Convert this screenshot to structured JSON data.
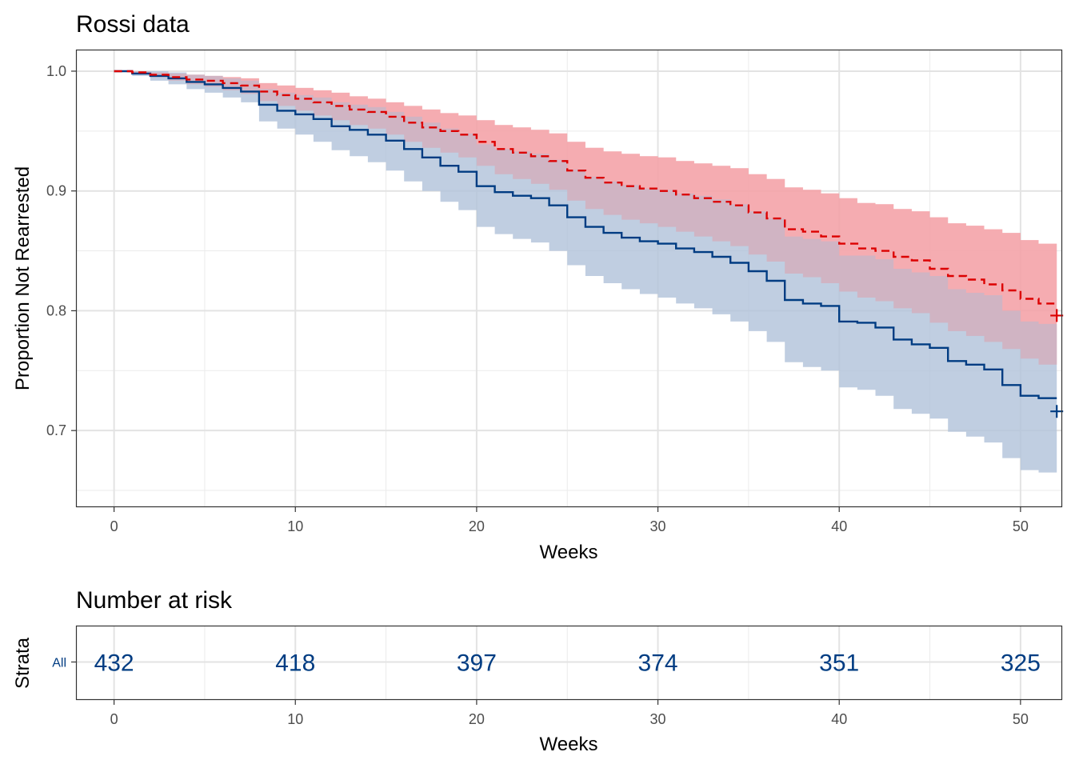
{
  "chart_data": [
    {
      "type": "line",
      "title": "Rossi data",
      "xlabel": "Weeks",
      "ylabel": "Proportion Not Rearrested",
      "xlim": [
        -2.1,
        52.3
      ],
      "ylim": [
        0.636,
        1.018
      ],
      "xticks": [
        0,
        10,
        20,
        30,
        40,
        50
      ],
      "yticks": [
        0.7,
        0.8,
        0.9,
        1.0
      ],
      "ytick_labels": [
        "0.7",
        "0.8",
        "0.9",
        "1.0"
      ],
      "grid": true,
      "step": true,
      "series": [
        {
          "color": "#DC0000",
          "ci_color": "#F4A3A8",
          "dash": true,
          "x": [
            0,
            1,
            2,
            3,
            4,
            5,
            6,
            7,
            8,
            9,
            10,
            11,
            12,
            13,
            14,
            15,
            16,
            17,
            18,
            19,
            20,
            21,
            22,
            23,
            24,
            25,
            26,
            27,
            28,
            29,
            30,
            31,
            32,
            33,
            34,
            35,
            36,
            37,
            38,
            39,
            40,
            41,
            42,
            43,
            44,
            45,
            46,
            47,
            48,
            49,
            50,
            51,
            52
          ],
          "y": [
            1.0,
            0.999,
            0.997,
            0.995,
            0.993,
            0.992,
            0.99,
            0.988,
            0.983,
            0.98,
            0.977,
            0.974,
            0.971,
            0.968,
            0.966,
            0.962,
            0.957,
            0.953,
            0.95,
            0.947,
            0.941,
            0.935,
            0.932,
            0.929,
            0.925,
            0.917,
            0.911,
            0.907,
            0.904,
            0.902,
            0.9,
            0.897,
            0.894,
            0.891,
            0.888,
            0.882,
            0.877,
            0.868,
            0.866,
            0.862,
            0.856,
            0.852,
            0.85,
            0.845,
            0.842,
            0.835,
            0.829,
            0.826,
            0.822,
            0.817,
            0.81,
            0.806,
            0.806
          ],
          "lower": [
            1.0,
            0.998,
            0.995,
            0.992,
            0.989,
            0.987,
            0.984,
            0.981,
            0.975,
            0.971,
            0.967,
            0.963,
            0.959,
            0.955,
            0.952,
            0.947,
            0.941,
            0.936,
            0.932,
            0.928,
            0.921,
            0.914,
            0.91,
            0.906,
            0.901,
            0.892,
            0.885,
            0.88,
            0.876,
            0.873,
            0.87,
            0.866,
            0.862,
            0.858,
            0.854,
            0.847,
            0.841,
            0.831,
            0.828,
            0.823,
            0.816,
            0.811,
            0.808,
            0.802,
            0.798,
            0.79,
            0.783,
            0.779,
            0.774,
            0.768,
            0.76,
            0.755,
            0.755
          ],
          "upper": [
            1.0,
            1.0,
            0.999,
            0.998,
            0.997,
            0.996,
            0.995,
            0.994,
            0.99,
            0.988,
            0.986,
            0.984,
            0.982,
            0.979,
            0.977,
            0.974,
            0.971,
            0.968,
            0.965,
            0.963,
            0.959,
            0.955,
            0.953,
            0.951,
            0.948,
            0.941,
            0.936,
            0.933,
            0.931,
            0.929,
            0.928,
            0.925,
            0.923,
            0.921,
            0.919,
            0.914,
            0.91,
            0.903,
            0.901,
            0.898,
            0.894,
            0.89,
            0.889,
            0.885,
            0.883,
            0.878,
            0.873,
            0.871,
            0.868,
            0.865,
            0.859,
            0.856,
            0.856
          ],
          "censor": {
            "x": 52,
            "y": 0.796
          }
        },
        {
          "color": "#003C82",
          "ci_color": "#B0C2D9",
          "dash": false,
          "x": [
            0,
            1,
            2,
            3,
            4,
            5,
            6,
            7,
            8,
            9,
            10,
            11,
            12,
            13,
            14,
            15,
            16,
            17,
            18,
            19,
            20,
            21,
            22,
            23,
            24,
            25,
            26,
            27,
            28,
            29,
            30,
            31,
            32,
            33,
            34,
            35,
            36,
            37,
            38,
            39,
            40,
            41,
            42,
            43,
            44,
            45,
            46,
            47,
            48,
            49,
            50,
            51,
            52
          ],
          "y": [
            1.0,
            0.998,
            0.996,
            0.994,
            0.991,
            0.989,
            0.986,
            0.983,
            0.972,
            0.967,
            0.964,
            0.96,
            0.954,
            0.951,
            0.947,
            0.942,
            0.935,
            0.928,
            0.921,
            0.916,
            0.904,
            0.899,
            0.896,
            0.894,
            0.888,
            0.878,
            0.87,
            0.865,
            0.861,
            0.858,
            0.856,
            0.852,
            0.849,
            0.845,
            0.84,
            0.833,
            0.825,
            0.809,
            0.806,
            0.804,
            0.791,
            0.79,
            0.786,
            0.776,
            0.772,
            0.769,
            0.758,
            0.755,
            0.751,
            0.738,
            0.729,
            0.727,
            0.727
          ],
          "lower": [
            1.0,
            0.996,
            0.992,
            0.989,
            0.985,
            0.982,
            0.978,
            0.974,
            0.958,
            0.952,
            0.947,
            0.941,
            0.934,
            0.929,
            0.924,
            0.917,
            0.908,
            0.9,
            0.891,
            0.884,
            0.87,
            0.864,
            0.86,
            0.857,
            0.85,
            0.838,
            0.829,
            0.823,
            0.818,
            0.814,
            0.811,
            0.806,
            0.802,
            0.797,
            0.791,
            0.783,
            0.774,
            0.757,
            0.753,
            0.75,
            0.736,
            0.734,
            0.729,
            0.718,
            0.714,
            0.71,
            0.699,
            0.695,
            0.69,
            0.677,
            0.667,
            0.665,
            0.665
          ],
          "upper": [
            1.0,
            1.0,
            1.0,
            0.999,
            0.997,
            0.996,
            0.994,
            0.992,
            0.985,
            0.982,
            0.98,
            0.978,
            0.974,
            0.972,
            0.97,
            0.966,
            0.962,
            0.957,
            0.952,
            0.948,
            0.939,
            0.935,
            0.933,
            0.931,
            0.926,
            0.918,
            0.912,
            0.908,
            0.905,
            0.902,
            0.901,
            0.898,
            0.896,
            0.893,
            0.889,
            0.883,
            0.877,
            0.862,
            0.86,
            0.858,
            0.846,
            0.846,
            0.843,
            0.835,
            0.832,
            0.829,
            0.818,
            0.815,
            0.813,
            0.8,
            0.791,
            0.789,
            0.789
          ],
          "censor": {
            "x": 52,
            "y": 0.716
          }
        }
      ]
    },
    {
      "type": "table",
      "title": "Number at risk",
      "xlabel": "Weeks",
      "ylabel": "Strata",
      "xlim": [
        -2.1,
        52.3
      ],
      "xticks": [
        0,
        10,
        20,
        30,
        40,
        50
      ],
      "strata": [
        "All"
      ],
      "value_color": "#003C82",
      "rows": [
        {
          "strata": "All",
          "x": [
            0,
            10,
            20,
            30,
            40,
            50
          ],
          "values": [
            "432",
            "418",
            "397",
            "374",
            "351",
            "325"
          ]
        }
      ]
    }
  ]
}
